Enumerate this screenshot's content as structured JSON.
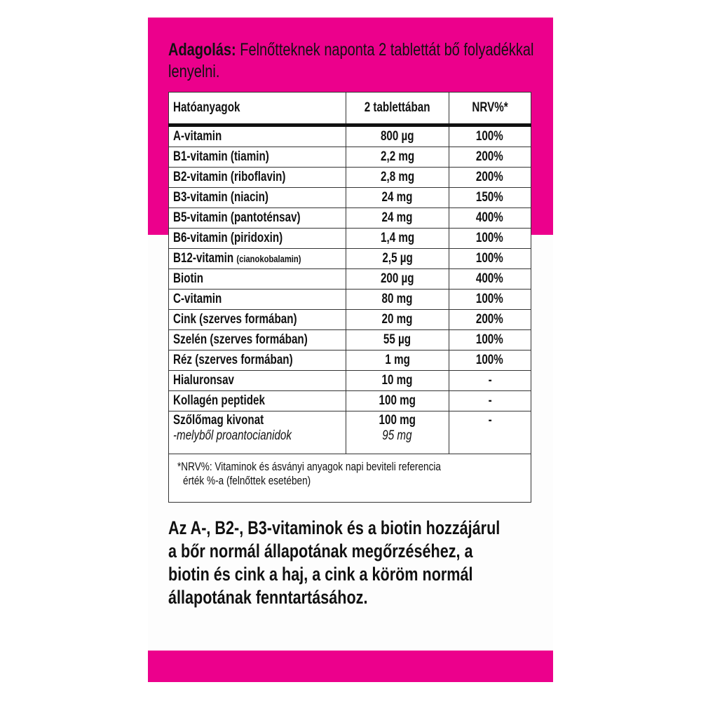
{
  "colors": {
    "brand_pink": "#EC008C"
  },
  "dosage": {
    "label": "Adagolás:",
    "text": " Felnőtteknek naponta 2 tablettát bő folyadékkal lenyelni."
  },
  "table": {
    "headers": [
      "Hatóanyagok",
      "2 tablettában",
      "NRV%*"
    ],
    "rows": [
      {
        "name": "A-vitamin",
        "note": "",
        "amount": "800 µg",
        "nrv": "100%"
      },
      {
        "name": "B1-vitamin (tiamin)",
        "note": "",
        "amount": "2,2 mg",
        "nrv": "200%"
      },
      {
        "name": "B2-vitamin (riboflavin)",
        "note": "",
        "amount": "2,8 mg",
        "nrv": "200%"
      },
      {
        "name": "B3-vitamin (niacin)",
        "note": "",
        "amount": "24 mg",
        "nrv": "150%"
      },
      {
        "name": "B5-vitamin (pantoténsav)",
        "note": "",
        "amount": "24 mg",
        "nrv": "400%"
      },
      {
        "name": "B6-vitamin (piridoxin)",
        "note": "",
        "amount": "1,4 mg",
        "nrv": "100%"
      },
      {
        "name": "B12-vitamin",
        "note": "(cianokobalamin)",
        "amount": "2,5 µg",
        "nrv": "100%"
      },
      {
        "name": "Biotin",
        "note": "",
        "amount": "200 µg",
        "nrv": "400%"
      },
      {
        "name": "C-vitamin",
        "note": "",
        "amount": "80 mg",
        "nrv": "100%"
      },
      {
        "name": "Cink (szerves formában)",
        "note": "",
        "amount": "20 mg",
        "nrv": "200%"
      },
      {
        "name": "Szelén (szerves formában)",
        "note": "",
        "amount": "55 µg",
        "nrv": "100%"
      },
      {
        "name": "Réz (szerves formában)",
        "note": "",
        "amount": "1 mg",
        "nrv": "100%"
      },
      {
        "name": "Hialuronsav",
        "note": "",
        "amount": "10 mg",
        "nrv": "-"
      },
      {
        "name": "Kollagén peptidek",
        "note": "",
        "amount": "100 mg",
        "nrv": "-"
      }
    ],
    "grape": {
      "name": "Szőlőmag kivonat",
      "amount": "100 mg",
      "nrv": "-",
      "sub_name": "-melyből proantocianidok",
      "sub_amount": "95 mg"
    },
    "footnote_line1": "*NRV%: Vitaminok és ásványi anyagok napi beviteli referencia",
    "footnote_line2": "érték %-a (felnőttek esetében)"
  },
  "claim": {
    "lines": [
      "Az A-, B2-, B3-vitaminok és a biotin hozzájárul",
      "a bőr normál állapotának megőrzéséhez, a",
      "biotin és cink a haj, a cink a köröm normál",
      "állapotának fenntartásához."
    ]
  }
}
